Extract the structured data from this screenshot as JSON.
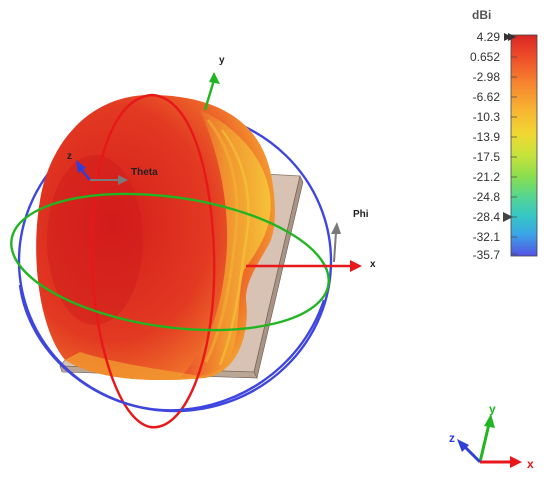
{
  "colorbar": {
    "unit": "dBi",
    "ticks": [
      "4.29",
      "0.652",
      "-2.98",
      "-6.62",
      "-10.3",
      "-13.9",
      "-17.5",
      "-21.2",
      "-24.8",
      "-28.4",
      "-32.1",
      "-35.7"
    ],
    "max_marker_value": "4.29",
    "marker_value": "-28.4",
    "colors": [
      "#d82624",
      "#ef4e2a",
      "#f6862f",
      "#f8b431",
      "#f2d833",
      "#c8e23b",
      "#8ee04c",
      "#56d68f",
      "#38c7c4",
      "#3aa7e6",
      "#4f7be9",
      "#5555e4"
    ]
  },
  "axes_labels": {
    "y": "y",
    "z": "z",
    "x": "x",
    "theta": "Theta",
    "phi": "Phi"
  },
  "triad": {
    "x": "x",
    "y": "y",
    "z": "z"
  },
  "colors": {
    "x_axis": "#e8171a",
    "y_axis": "#22b522",
    "z_axis": "#2f3fd8",
    "theta_phi_arrow": "#7a7a7a",
    "ring_red": "#e8171a",
    "ring_green": "#22b522",
    "ring_blue": "#3f46e0",
    "ground_plane": "#d7c2b4"
  }
}
